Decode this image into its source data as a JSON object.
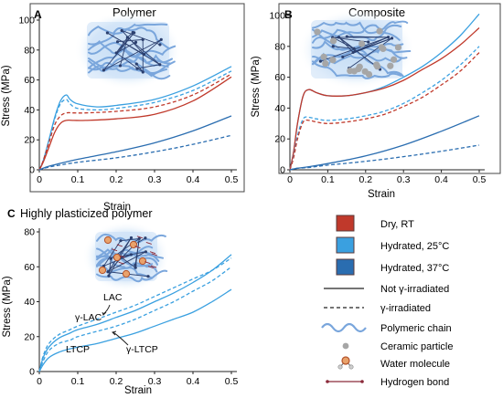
{
  "charts": [
    {
      "panel": "A",
      "title": "Polymer",
      "inset": "polymer",
      "xlabel": "Strain",
      "ylabel": "Stress (MPa)",
      "xlim": [
        0,
        0.5
      ],
      "ylim": [
        0,
        100
      ],
      "xticks": [
        "0",
        "0.1",
        "0.2",
        "0.3",
        "0.4",
        "0.5"
      ],
      "yticks": [
        "0",
        "20",
        "40",
        "60",
        "80",
        "100"
      ],
      "xtick_values": [
        0,
        0.1,
        0.2,
        0.3,
        0.4,
        0.5
      ],
      "ytick_values": [
        0,
        20,
        40,
        60,
        80,
        100
      ]
    },
    {
      "panel": "B",
      "title": "Composite",
      "inset": "composite",
      "xlabel": "Strain",
      "ylabel": "Stress (MPa)",
      "xlim": [
        0,
        0.5
      ],
      "ylim": [
        0,
        100
      ],
      "xticks": [
        "0",
        "0.1",
        "0.2",
        "0.3",
        "0.4",
        "0.5"
      ],
      "yticks": [
        "0",
        "20",
        "40",
        "60",
        "80",
        "100"
      ],
      "xtick_values": [
        0,
        0.1,
        0.2,
        0.3,
        0.4,
        0.5
      ],
      "ytick_values": [
        0,
        20,
        40,
        60,
        80,
        100
      ]
    },
    {
      "panel": "C",
      "title": "Highly plasticized polymer",
      "inset": "plasticized",
      "xlabel": "Strain",
      "ylabel": "Stress (MPa)",
      "xlim": [
        0,
        0.5
      ],
      "ylim": [
        0,
        80
      ],
      "xticks": [
        "0",
        "0.1",
        "0.2",
        "0.3",
        "0.4",
        "0.5"
      ],
      "yticks": [
        "0",
        "20",
        "40",
        "60",
        "80"
      ],
      "xtick_values": [
        0,
        0.1,
        0.2,
        0.3,
        0.4,
        0.5
      ],
      "ytick_values": [
        0,
        20,
        40,
        60,
        80
      ],
      "annotations": [
        "LAC",
        "γ-LAC",
        "LTCP",
        "γ-LTCP"
      ]
    }
  ],
  "chart_data": [
    {
      "type": "line",
      "title": "Polymer",
      "xlabel": "Strain",
      "ylabel": "Stress (MPa)",
      "xlim": [
        0,
        0.5
      ],
      "ylim": [
        0,
        100
      ],
      "series": [
        {
          "condition": "hydrated_25",
          "style": "solid",
          "x": [
            0,
            0.01,
            0.025,
            0.04,
            0.055,
            0.07,
            0.08,
            0.1,
            0.15,
            0.2,
            0.3,
            0.4,
            0.5
          ],
          "y": [
            0,
            6,
            20,
            35,
            46,
            50,
            47,
            44,
            42,
            43,
            47,
            56,
            69
          ]
        },
        {
          "condition": "hydrated_25",
          "style": "dashed",
          "x": [
            0,
            0.01,
            0.025,
            0.04,
            0.055,
            0.07,
            0.08,
            0.1,
            0.15,
            0.2,
            0.3,
            0.4,
            0.5
          ],
          "y": [
            0,
            6,
            19,
            34,
            44,
            47,
            44,
            41,
            40,
            41,
            45,
            53,
            66
          ]
        },
        {
          "condition": "dry_rt",
          "style": "solid",
          "x": [
            0,
            0.01,
            0.025,
            0.04,
            0.055,
            0.07,
            0.09,
            0.12,
            0.2,
            0.3,
            0.4,
            0.5
          ],
          "y": [
            0,
            5,
            15,
            25,
            31,
            33,
            33,
            33,
            34,
            37,
            46,
            62
          ]
        },
        {
          "condition": "dry_rt",
          "style": "dashed",
          "x": [
            0,
            0.01,
            0.025,
            0.04,
            0.055,
            0.07,
            0.09,
            0.12,
            0.2,
            0.3,
            0.4,
            0.5
          ],
          "y": [
            0,
            6,
            18,
            30,
            36,
            38,
            38,
            38,
            39,
            42,
            50,
            64
          ]
        },
        {
          "condition": "hydrated_37",
          "style": "solid",
          "x": [
            0,
            0.02,
            0.05,
            0.1,
            0.2,
            0.3,
            0.4,
            0.5
          ],
          "y": [
            0,
            2,
            4,
            7,
            12,
            18,
            26,
            36
          ]
        },
        {
          "condition": "hydrated_37",
          "style": "dashed",
          "x": [
            0,
            0.02,
            0.05,
            0.1,
            0.2,
            0.3,
            0.4,
            0.5
          ],
          "y": [
            0,
            1.5,
            3,
            5,
            8,
            12,
            17,
            23
          ]
        }
      ]
    },
    {
      "type": "line",
      "title": "Composite",
      "xlabel": "Strain",
      "ylabel": "Stress (MPa)",
      "xlim": [
        0,
        0.5
      ],
      "ylim": [
        0,
        100
      ],
      "series": [
        {
          "condition": "hydrated_25",
          "style": "solid",
          "x": [
            0,
            0.01,
            0.02,
            0.035,
            0.05,
            0.07,
            0.1,
            0.15,
            0.2,
            0.25,
            0.3,
            0.35,
            0.4,
            0.45,
            0.5
          ],
          "y": [
            0,
            12,
            30,
            48,
            52,
            50,
            48,
            48,
            50,
            54,
            60,
            67,
            76,
            87,
            101
          ]
        },
        {
          "condition": "dry_rt",
          "style": "solid",
          "x": [
            0,
            0.01,
            0.02,
            0.035,
            0.05,
            0.07,
            0.1,
            0.15,
            0.2,
            0.25,
            0.3,
            0.35,
            0.4,
            0.45,
            0.5
          ],
          "y": [
            0,
            12,
            30,
            48,
            52,
            50,
            48,
            48,
            50,
            53,
            58,
            65,
            72,
            81,
            92
          ]
        },
        {
          "condition": "hydrated_25",
          "style": "dashed",
          "x": [
            0,
            0.01,
            0.02,
            0.035,
            0.05,
            0.07,
            0.1,
            0.15,
            0.2,
            0.25,
            0.3,
            0.35,
            0.4,
            0.45,
            0.5
          ],
          "y": [
            0,
            9,
            22,
            33,
            34,
            33,
            32,
            33,
            35,
            38,
            43,
            50,
            58,
            68,
            80
          ]
        },
        {
          "condition": "dry_rt",
          "style": "dashed",
          "x": [
            0,
            0.01,
            0.02,
            0.035,
            0.05,
            0.07,
            0.1,
            0.15,
            0.2,
            0.25,
            0.3,
            0.35,
            0.4,
            0.45,
            0.5
          ],
          "y": [
            0,
            8,
            20,
            31,
            32,
            31,
            30,
            31,
            33,
            36,
            41,
            47,
            55,
            64,
            76
          ]
        },
        {
          "condition": "hydrated_37",
          "style": "solid",
          "x": [
            0,
            0.02,
            0.05,
            0.1,
            0.2,
            0.3,
            0.4,
            0.5
          ],
          "y": [
            0,
            1,
            2,
            4,
            9,
            16,
            25,
            35
          ]
        },
        {
          "condition": "hydrated_37",
          "style": "dashed",
          "x": [
            0,
            0.02,
            0.05,
            0.1,
            0.2,
            0.3,
            0.4,
            0.5
          ],
          "y": [
            0,
            1,
            1.5,
            3,
            5.5,
            8.5,
            12,
            16
          ]
        }
      ]
    },
    {
      "type": "line",
      "title": "Highly plasticized polymer",
      "xlabel": "Strain",
      "ylabel": "Stress (MPa)",
      "xlim": [
        0,
        0.5
      ],
      "ylim": [
        0,
        80
      ],
      "series": [
        {
          "condition": "hydrated_25",
          "style": "dashed",
          "label": "γ-LAC",
          "x": [
            0,
            0.01,
            0.025,
            0.05,
            0.08,
            0.1,
            0.15,
            0.2,
            0.25,
            0.3,
            0.35,
            0.4,
            0.45,
            0.5
          ],
          "y": [
            0,
            9,
            16,
            21,
            24,
            26,
            30,
            34,
            38,
            43,
            48,
            53,
            58,
            65
          ]
        },
        {
          "condition": "hydrated_25",
          "style": "solid",
          "label": "LAC",
          "x": [
            0,
            0.01,
            0.025,
            0.05,
            0.08,
            0.1,
            0.15,
            0.2,
            0.25,
            0.3,
            0.35,
            0.4,
            0.45,
            0.5
          ],
          "y": [
            0,
            8,
            14,
            19,
            22,
            24,
            27,
            31,
            35,
            40,
            45,
            51,
            58,
            67
          ]
        },
        {
          "condition": "hydrated_25",
          "style": "dashed",
          "label": "γ-LTCP",
          "x": [
            0,
            0.01,
            0.025,
            0.05,
            0.08,
            0.1,
            0.15,
            0.2,
            0.25,
            0.3,
            0.35,
            0.4,
            0.45,
            0.5
          ],
          "y": [
            0,
            6,
            12,
            16,
            18,
            20,
            23,
            26,
            30,
            35,
            40,
            46,
            52,
            60
          ]
        },
        {
          "condition": "hydrated_25",
          "style": "solid",
          "label": "LTCP",
          "x": [
            0,
            0.01,
            0.025,
            0.05,
            0.08,
            0.1,
            0.15,
            0.2,
            0.25,
            0.3,
            0.35,
            0.4,
            0.45,
            0.5
          ],
          "y": [
            0,
            4,
            8,
            11,
            13,
            14,
            16,
            19,
            22,
            26,
            30,
            34,
            40,
            47
          ]
        }
      ]
    }
  ],
  "colors": {
    "dry_rt": "#c0392b",
    "hydrated_25": "#3aa0e0",
    "hydrated_37": "#2a6db0",
    "axis": "#222222",
    "inset_glow": "#b9d7f3",
    "chain": "#7aa6dc",
    "particle": "#a6a6a6",
    "bond": "#8b2a3a"
  },
  "legend": [
    {
      "kind": "swatch",
      "condition": "dry_rt",
      "label": "Dry, RT"
    },
    {
      "kind": "swatch",
      "condition": "hydrated_25",
      "label": "Hydrated, 25°C"
    },
    {
      "kind": "swatch",
      "condition": "hydrated_37",
      "label": "Hydrated, 37°C"
    },
    {
      "kind": "line-solid",
      "label": "Not γ-irradiated"
    },
    {
      "kind": "line-dashed",
      "label": "γ-irradiated"
    },
    {
      "kind": "chain",
      "label": "Polymeric chain"
    },
    {
      "kind": "particle",
      "label": "Ceramic particle"
    },
    {
      "kind": "water",
      "label": "Water molecule"
    },
    {
      "kind": "bond",
      "label": "Hydrogen bond"
    }
  ]
}
